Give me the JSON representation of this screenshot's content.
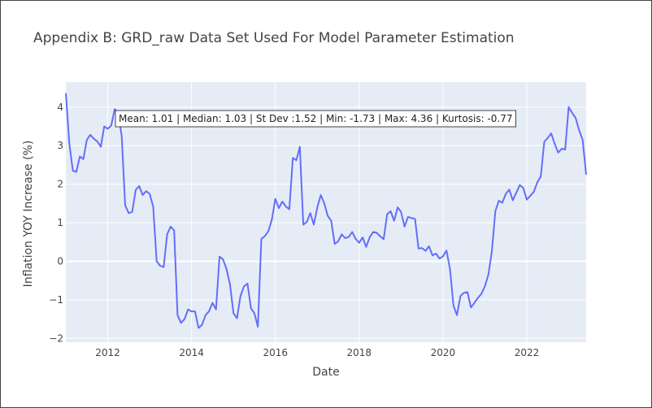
{
  "chart_data": {
    "type": "line",
    "title": "Appendix B: GRD_raw Data Set Used For Model Parameter Estimation",
    "xlabel": "Date",
    "ylabel": "Inflation YOY Increase (%)",
    "xlim": [
      "2011-01-01",
      "2023-06-01"
    ],
    "ylim": [
      -2.1,
      4.65
    ],
    "x_ticks": [
      "2012",
      "2014",
      "2016",
      "2018",
      "2020",
      "2022"
    ],
    "y_ticks": [
      "−2",
      "−1",
      "0",
      "1",
      "2",
      "3",
      "4"
    ],
    "grid": true,
    "annotation": "Mean: 1.01 | Median: 1.03 | St Dev :1.52 | Min: -1.73 | Max: 4.36 | Kurtosis: -0.77",
    "colors": {
      "plot_background": "#e5ecf6",
      "grid": "#ffffff",
      "line": "#636efa",
      "text": "#444444"
    },
    "series": [
      {
        "x": [
          "2011-01",
          "2011-02",
          "2011-03",
          "2011-04",
          "2011-05",
          "2011-06",
          "2011-07",
          "2011-08",
          "2011-09",
          "2011-10",
          "2011-11",
          "2011-12",
          "2012-01",
          "2012-02",
          "2012-03",
          "2012-04",
          "2012-05",
          "2012-06",
          "2012-07",
          "2012-08",
          "2012-09",
          "2012-10",
          "2012-11",
          "2012-12",
          "2013-01",
          "2013-02",
          "2013-03",
          "2013-04",
          "2013-05",
          "2013-06",
          "2013-07",
          "2013-08",
          "2013-09",
          "2013-10",
          "2013-11",
          "2013-12",
          "2014-01",
          "2014-02",
          "2014-03",
          "2014-04",
          "2014-05",
          "2014-06",
          "2014-07",
          "2014-08",
          "2014-09",
          "2014-10",
          "2014-11",
          "2014-12",
          "2015-01",
          "2015-02",
          "2015-03",
          "2015-04",
          "2015-05",
          "2015-06",
          "2015-07",
          "2015-08",
          "2015-09",
          "2015-10",
          "2015-11",
          "2015-12",
          "2016-01",
          "2016-02",
          "2016-03",
          "2016-04",
          "2016-05",
          "2016-06",
          "2016-07",
          "2016-08",
          "2016-09",
          "2016-10",
          "2016-11",
          "2016-12",
          "2017-01",
          "2017-02",
          "2017-03",
          "2017-04",
          "2017-05",
          "2017-06",
          "2017-07",
          "2017-08",
          "2017-09",
          "2017-10",
          "2017-11",
          "2017-12",
          "2018-01",
          "2018-02",
          "2018-03",
          "2018-04",
          "2018-05",
          "2018-06",
          "2018-07",
          "2018-08",
          "2018-09",
          "2018-10",
          "2018-11",
          "2018-12",
          "2019-01",
          "2019-02",
          "2019-03",
          "2019-04",
          "2019-05",
          "2019-06",
          "2019-07",
          "2019-08",
          "2019-09",
          "2019-10",
          "2019-11",
          "2019-12",
          "2020-01",
          "2020-02",
          "2020-03",
          "2020-04",
          "2020-05",
          "2020-06",
          "2020-07",
          "2020-08",
          "2020-09",
          "2020-10",
          "2020-11",
          "2020-12",
          "2021-01",
          "2021-02",
          "2021-03",
          "2021-04",
          "2021-05",
          "2021-06",
          "2021-07",
          "2021-08",
          "2021-09",
          "2021-10",
          "2021-11",
          "2021-12",
          "2022-01",
          "2022-02",
          "2022-03",
          "2022-04",
          "2022-05",
          "2022-06",
          "2022-07",
          "2022-08",
          "2022-09",
          "2022-10",
          "2022-11",
          "2022-12",
          "2023-01",
          "2023-02",
          "2023-03",
          "2023-04",
          "2023-05",
          "2023-06"
        ],
        "y": [
          4.36,
          3.05,
          2.35,
          2.32,
          2.72,
          2.65,
          3.15,
          3.28,
          3.18,
          3.11,
          2.97,
          3.5,
          3.44,
          3.52,
          3.95,
          3.85,
          3.25,
          1.45,
          1.25,
          1.28,
          1.85,
          1.95,
          1.72,
          1.82,
          1.75,
          1.42,
          0.0,
          -0.12,
          -0.15,
          0.7,
          0.9,
          0.8,
          -1.4,
          -1.6,
          -1.5,
          -1.25,
          -1.3,
          -1.3,
          -1.73,
          -1.65,
          -1.4,
          -1.3,
          -1.08,
          -1.25,
          0.12,
          0.05,
          -0.2,
          -0.6,
          -1.35,
          -1.48,
          -0.9,
          -0.65,
          -0.58,
          -1.22,
          -1.35,
          -1.7,
          0.58,
          0.65,
          0.78,
          1.08,
          1.62,
          1.38,
          1.55,
          1.42,
          1.35,
          2.68,
          2.62,
          2.97,
          0.95,
          1.02,
          1.25,
          0.95,
          1.4,
          1.72,
          1.5,
          1.18,
          1.05,
          0.45,
          0.52,
          0.7,
          0.6,
          0.63,
          0.76,
          0.58,
          0.48,
          0.62,
          0.37,
          0.62,
          0.76,
          0.74,
          0.65,
          0.57,
          1.22,
          1.3,
          1.05,
          1.4,
          1.28,
          0.9,
          1.15,
          1.12,
          1.1,
          0.33,
          0.34,
          0.27,
          0.39,
          0.15,
          0.2,
          0.07,
          0.13,
          0.28,
          -0.2,
          -1.15,
          -1.4,
          -0.9,
          -0.82,
          -0.8,
          -1.2,
          -1.08,
          -0.95,
          -0.85,
          -0.65,
          -0.35,
          0.25,
          1.3,
          1.57,
          1.52,
          1.75,
          1.86,
          1.58,
          1.78,
          1.98,
          1.9,
          1.6,
          1.7,
          1.8,
          2.05,
          2.2,
          3.1,
          3.2,
          3.32,
          3.05,
          2.82,
          2.92,
          2.9,
          4.0,
          3.85,
          3.72,
          3.4,
          3.15,
          2.25
        ]
      }
    ]
  }
}
